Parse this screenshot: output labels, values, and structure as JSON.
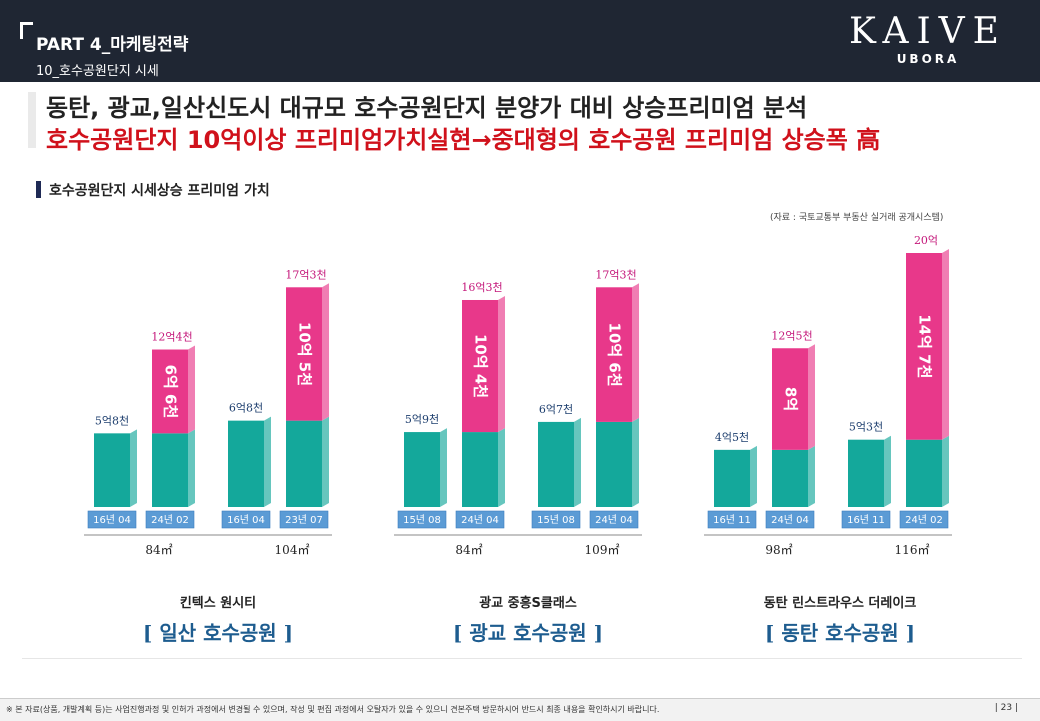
{
  "header": {
    "part_title": "PART 4_마케팅전략",
    "sub_title": "10_호수공원단지 시세",
    "logo_brand": "KAIVE",
    "logo_tag": "UBORA"
  },
  "headline": {
    "line1": "동탄, 광교,일산신도시 대규모 호수공원단지 분양가 대비 상승프리미엄 분석",
    "line2": "호수공원단지 10억이상 프리미엄가치실현→중대형의 호수공원 프리미엄 상승폭 高"
  },
  "section_title": "호수공원단지 시세상승 프리미엄 가치",
  "source_note": "(자료 : 국토교통부 부동산 실거래 공개시스템)",
  "colors": {
    "base": "#14a89b",
    "premium": "#e8388a",
    "label_box": "#5b9bd5",
    "region_text": "#1d5c8f",
    "price_label": "#c4177a"
  },
  "chart_data": {
    "type": "bar",
    "stacked": true,
    "unit": "억",
    "groups": [
      {
        "complex": "킨텍스 원시티",
        "region": "[ 일산 호수공원 ]",
        "sizes": [
          {
            "size": "84㎡",
            "bars": [
              {
                "date": "16년 04",
                "total": 5.8,
                "total_label": "5억8천"
              },
              {
                "date": "24년 02",
                "base": 5.8,
                "premium": 6.6,
                "total": 12.4,
                "total_label": "12억4천",
                "premium_label": "6억 6천"
              }
            ]
          },
          {
            "size": "104㎡",
            "bars": [
              {
                "date": "16년 04",
                "total": 6.8,
                "total_label": "6억8천"
              },
              {
                "date": "23년 07",
                "base": 6.8,
                "premium": 10.5,
                "total": 17.3,
                "total_label": "17억3천",
                "premium_label": "10억 5천"
              }
            ]
          }
        ]
      },
      {
        "complex": "광교 중흥S클래스",
        "region": "[ 광교 호수공원 ]",
        "sizes": [
          {
            "size": "84㎡",
            "bars": [
              {
                "date": "15년 08",
                "total": 5.9,
                "total_label": "5억9천"
              },
              {
                "date": "24년 04",
                "base": 5.9,
                "premium": 10.4,
                "total": 16.3,
                "total_label": "16억3천",
                "premium_label": "10억 4천"
              }
            ]
          },
          {
            "size": "109㎡",
            "bars": [
              {
                "date": "15년 08",
                "total": 6.7,
                "total_label": "6억7천"
              },
              {
                "date": "24년 04",
                "base": 6.7,
                "premium": 10.6,
                "total": 17.3,
                "total_label": "17억3천",
                "premium_label": "10억 6천"
              }
            ]
          }
        ]
      },
      {
        "complex": "동탄 린스트라우스 더레이크",
        "region": "[ 동탄 호수공원 ]",
        "sizes": [
          {
            "size": "98㎡",
            "bars": [
              {
                "date": "16년 11",
                "total": 4.5,
                "total_label": "4억5천"
              },
              {
                "date": "24년 04",
                "base": 4.5,
                "premium": 8.0,
                "total": 12.5,
                "total_label": "12억5천",
                "premium_label": "8억"
              }
            ]
          },
          {
            "size": "116㎡",
            "bars": [
              {
                "date": "16년 11",
                "total": 5.3,
                "total_label": "5억3천"
              },
              {
                "date": "24년 02",
                "base": 5.3,
                "premium": 14.7,
                "total": 20,
                "total_label": "20억",
                "premium_label": "14억 7천"
              }
            ]
          }
        ]
      }
    ]
  },
  "footer": {
    "note": "※ 본 자료(상품, 개발계획 등)는 사업진행과정 및 인허가 과정에서 변경될 수 있으며, 작성 및 편집 과정에서 오탈자가 있을 수 있으니 견본주택 방문하시어 반드시 최종 내용을 확인하시기 바랍니다.",
    "page": "| 23 |"
  }
}
